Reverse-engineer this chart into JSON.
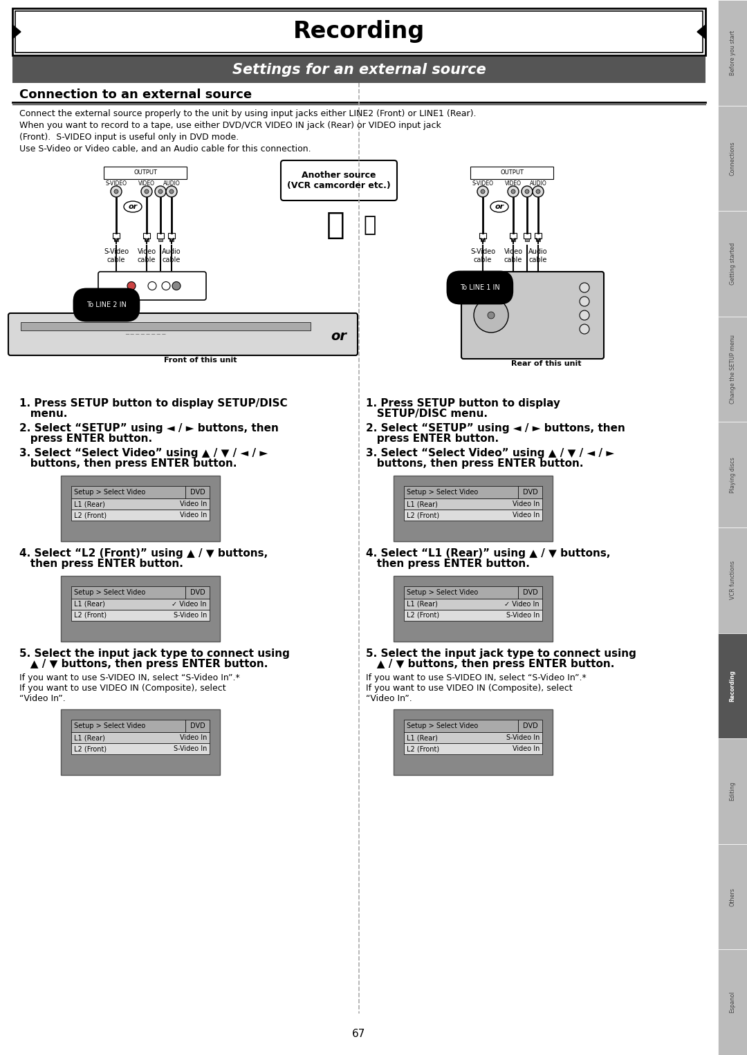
{
  "title": "Recording",
  "subtitle": "Settings for an external source",
  "section_title": "Connection to an external source",
  "body_text": [
    "Connect the external source properly to the unit by using input jacks either LINE2 (Front) or LINE1 (Rear).",
    "When you want to record to a tape, use either DVD/VCR VIDEO IN jack (Rear) or VIDEO input jack",
    "(Front).  S-VIDEO input is useful only in DVD mode.",
    "Use S-Video or Video cable, and an Audio cable for this connection."
  ],
  "left_steps_1_3": "1. Press SETUP button to display SETUP/DISC\n   menu.\n2. Select “SETUP” using ◄ / ► buttons, then\n   press ENTER button.\n3. Select “Select Video” using ▲ / ▼ / ◄ / ►\n   buttons, then press ENTER button.",
  "right_steps_1_3": "1. Press SETUP button to display\n   SETUP/DISC menu.\n2. Select “SETUP” using ◄ / ► buttons, then\n   press ENTER button.\n3. Select “Select Video” using ▲ / ▼ / ◄ / ►\n   buttons, then press ENTER button.",
  "left_step4": "4. Select “L2 (Front)” using ▲ / ▼ buttons,\n   then press ENTER button.",
  "right_step4": "4. Select “L1 (Rear)” using ▲ / ▼ buttons,\n   then press ENTER button.",
  "left_step5_bold": "5. Select the input jack type to connect using\n   ▲ / ▼ buttons, then press ENTER button.",
  "right_step5_bold": "5. Select the input jack type to connect using\n   ▲ / ▼ buttons, then press ENTER button.",
  "step5_sub_left": "If you want to use S-VIDEO IN, select “S-Video In”.*\nIf you want to use VIDEO IN (Composite), select\n“Video In”.",
  "step5_sub_right": "If you want to use S-VIDEO IN, select “S-Video In”.*\nIf you want to use VIDEO IN (Composite), select\n“Video In”.",
  "front_label": "Front of this unit",
  "rear_label": "Rear of this unit",
  "to_line2": "To LINE 2 IN",
  "to_line1": "To LINE 1 IN",
  "another_source": "Another source\n(VCR camcorder etc.)",
  "or_center": "or",
  "subtitle_bg": "#555555",
  "page_bg": "#ffffff",
  "tab_labels": [
    "Before you start",
    "Connections",
    "Getting started",
    "Change the SETUP menu",
    "Playing discs",
    "VCR functions",
    "Recording",
    "Editing",
    "Others",
    "Espanol"
  ],
  "tab_active": 6,
  "page_number": "67",
  "screen_bg": "#888888",
  "screen_table_left_3": {
    "header": "Setup > Select Video",
    "badge": "DVD",
    "rows": [
      [
        "L1 (Rear)",
        "Video In"
      ],
      [
        "L2 (Front)",
        "Video In"
      ]
    ]
  },
  "screen_table_left_4": {
    "header": "Setup > Select Video",
    "badge": "DVD",
    "rows": [
      [
        "L1 (Rear)",
        "✓ Video In"
      ],
      [
        "L2 (Front)",
        "S-Video In"
      ]
    ]
  },
  "screen_table_left_5": {
    "header": "Setup > Select Video",
    "badge": "DVD",
    "rows": [
      [
        "L1 (Rear)",
        "Video In"
      ],
      [
        "L2 (Front)",
        "S-Video In"
      ]
    ]
  },
  "screen_table_right_3": {
    "header": "Setup > Select Video",
    "badge": "DVD",
    "rows": [
      [
        "L1 (Rear)",
        "Video In"
      ],
      [
        "L2 (Front)",
        "Video In"
      ]
    ]
  },
  "screen_table_right_4": {
    "header": "Setup > Select Video",
    "badge": "DVD",
    "rows": [
      [
        "L1 (Rear)",
        "✓ Video In"
      ],
      [
        "L2 (Front)",
        "S-Video In"
      ]
    ]
  },
  "screen_table_right_5": {
    "header": "Setup > Select Video",
    "badge": "DVD",
    "rows": [
      [
        "L1 (Rear)",
        "S-Video In"
      ],
      [
        "L2 (Front)",
        "Video In"
      ]
    ]
  }
}
